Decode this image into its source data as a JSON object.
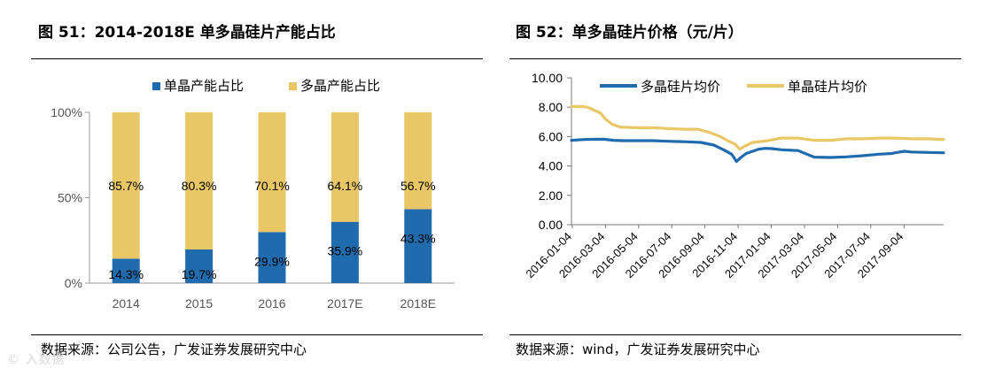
{
  "left": {
    "title": "图 51：2014-2018E 单多晶硅片产能占比",
    "source": "数据来源：公司公告，广发证券发展研究中心"
  },
  "right": {
    "title": "图 52：单多晶硅片价格（元/片）",
    "source": "数据来源：wind，广发证券发展研究中心"
  },
  "watermark": "© 入数据",
  "colors": {
    "blue": "#1F6BAD",
    "gold": "#E9C766"
  },
  "chart_data": [
    {
      "type": "bar",
      "stacked": true,
      "categories": [
        "2014",
        "2015",
        "2016",
        "2017E",
        "2018E"
      ],
      "series": [
        {
          "name": "单晶产能占比",
          "values": [
            14.3,
            19.7,
            29.9,
            35.9,
            43.3
          ],
          "labels": [
            "14.3%",
            "19.7%",
            "29.9%",
            "35.9%",
            "43.3%"
          ]
        },
        {
          "name": "多晶产能占比",
          "values": [
            85.7,
            80.3,
            70.1,
            64.1,
            56.7
          ],
          "labels": [
            "85.7%",
            "80.3%",
            "70.1%",
            "64.1%",
            "56.7%"
          ]
        }
      ],
      "yticks": [
        "0%",
        "50%",
        "100%"
      ],
      "ylim": [
        0,
        100
      ],
      "legend": "top"
    },
    {
      "type": "line",
      "x_ticks": [
        "2016-01-04",
        "2016-03-04",
        "2016-05-04",
        "2016-07-04",
        "2016-09-04",
        "2016-11-04",
        "2017-01-04",
        "2017-03-04",
        "2017-05-04",
        "2017-07-04",
        "2017-09-04"
      ],
      "yticks": [
        "0.00",
        "2.00",
        "4.00",
        "6.00",
        "8.00",
        "10.00"
      ],
      "ylim": [
        0,
        10
      ],
      "xlim": [
        0,
        23
      ],
      "series": [
        {
          "name": "多晶硅片均价",
          "x": [
            0,
            0.8,
            1.4,
            2.0,
            2.6,
            3.2,
            4,
            5,
            6,
            7,
            8,
            8.8,
            9.4,
            9.9,
            10.2,
            10.5,
            10.8,
            11.2,
            11.6,
            12,
            12.4,
            13,
            14,
            15,
            16,
            17,
            18,
            19,
            19.8,
            20,
            20.6,
            21,
            22,
            23
          ],
          "y": [
            5.75,
            5.8,
            5.82,
            5.82,
            5.75,
            5.72,
            5.72,
            5.72,
            5.68,
            5.65,
            5.6,
            5.42,
            5.1,
            4.8,
            4.3,
            4.6,
            4.85,
            5.0,
            5.15,
            5.2,
            5.18,
            5.1,
            5.05,
            4.6,
            4.58,
            4.62,
            4.7,
            4.8,
            4.85,
            4.9,
            5.0,
            4.95,
            4.92,
            4.9
          ]
        },
        {
          "name": "单晶硅片均价",
          "x": [
            0,
            0.6,
            1.0,
            1.4,
            1.8,
            2.1,
            2.5,
            3.0,
            4,
            5,
            6,
            7,
            7.8,
            8.5,
            9.2,
            9.7,
            10.1,
            10.4,
            10.8,
            11.2,
            12,
            13,
            14,
            15,
            16,
            17,
            18,
            19,
            20,
            21,
            22,
            23
          ],
          "y": [
            8.05,
            8.05,
            8.0,
            7.8,
            7.6,
            7.2,
            6.85,
            6.65,
            6.6,
            6.6,
            6.55,
            6.5,
            6.5,
            6.3,
            6.0,
            5.7,
            5.5,
            5.15,
            5.4,
            5.6,
            5.7,
            5.9,
            5.9,
            5.75,
            5.75,
            5.85,
            5.85,
            5.9,
            5.9,
            5.85,
            5.85,
            5.8
          ]
        }
      ],
      "legend": "top-left"
    }
  ]
}
